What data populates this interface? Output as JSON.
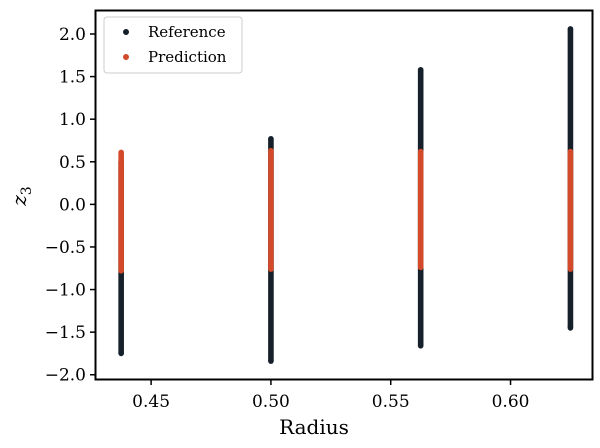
{
  "chart_data": {
    "type": "scatter",
    "title": "",
    "xlabel": "Radius",
    "ylabel": "z",
    "ylabel_subscript": "3",
    "xlim": [
      0.427,
      0.634
    ],
    "ylim": [
      -2.05,
      2.27
    ],
    "xticks": [
      "0.45",
      "0.50",
      "0.55",
      "0.60"
    ],
    "xtick_values": [
      0.45,
      0.5,
      0.55,
      0.6
    ],
    "yticks": [
      "-2.0",
      "-1.5",
      "-1.0",
      "-0.5",
      "0.0",
      "0.5",
      "1.0",
      "1.5",
      "2.0"
    ],
    "ytick_values": [
      -2.0,
      -1.5,
      -1.0,
      -0.5,
      0.0,
      0.5,
      1.0,
      1.5,
      2.0
    ],
    "grid": false,
    "legend_position": "upper-left",
    "series": [
      {
        "name": "Reference",
        "color": "#15202b",
        "columns": [
          {
            "x": 0.4375,
            "y_min": -1.75,
            "y_max": 0.5
          },
          {
            "x": 0.5,
            "y_min": -1.84,
            "y_max": 0.77
          },
          {
            "x": 0.5625,
            "y_min": -1.66,
            "y_max": 1.58
          },
          {
            "x": 0.625,
            "y_min": -1.45,
            "y_max": 2.06
          }
        ]
      },
      {
        "name": "Prediction",
        "color": "#d24a2a",
        "columns": [
          {
            "x": 0.4375,
            "y_min": -0.78,
            "y_max": 0.61
          },
          {
            "x": 0.5,
            "y_min": -0.76,
            "y_max": 0.63
          },
          {
            "x": 0.5625,
            "y_min": -0.74,
            "y_max": 0.62
          },
          {
            "x": 0.625,
            "y_min": -0.76,
            "y_max": 0.62
          }
        ]
      }
    ]
  }
}
